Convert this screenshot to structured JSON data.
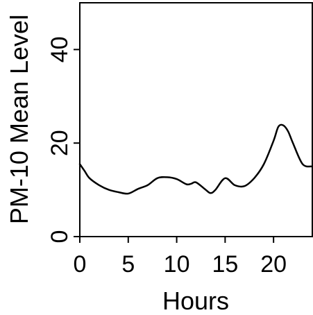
{
  "chart_data": {
    "type": "line",
    "xlabel": "Hours",
    "ylabel": "PM-10 Mean Level",
    "xlim": [
      0,
      24
    ],
    "ylim": [
      0,
      50
    ],
    "xticks": [
      "0",
      "5",
      "10",
      "15",
      "20"
    ],
    "yticks": [
      "0",
      "20",
      "40"
    ],
    "grid": false,
    "series": [
      {
        "x": [
          0,
          0.5,
          1,
          2,
          3,
          4,
          5,
          6,
          7,
          8,
          9,
          10,
          11,
          11.5,
          12,
          13,
          13.5,
          14,
          15,
          16,
          17,
          18,
          19,
          20,
          20.5,
          21,
          21.5,
          22,
          23,
          24
        ],
        "y": [
          15.5,
          14,
          12.5,
          11,
          10,
          9.5,
          9.2,
          10.2,
          11,
          12.5,
          12.7,
          12.3,
          11.2,
          11.3,
          11.6,
          10,
          9.3,
          10,
          12.5,
          11,
          10.8,
          12.5,
          15.5,
          20.5,
          23.5,
          23.8,
          22.5,
          20,
          15.5,
          15
        ]
      }
    ],
    "color": "#000000"
  }
}
